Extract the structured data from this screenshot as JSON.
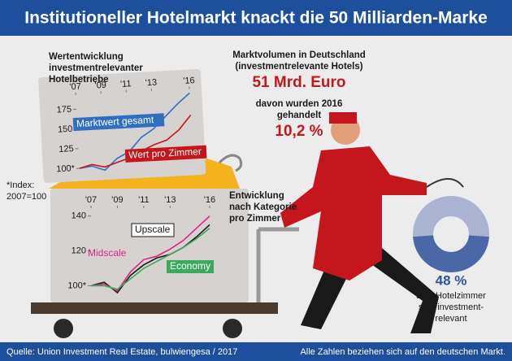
{
  "title": "Institutioneller Hotelmarkt knackt die 50 Milliarden-Marke",
  "chart_data": [
    {
      "type": "line",
      "title": [
        "Wertentwicklung",
        "investmentrelevanter",
        "Hotelbetriebe"
      ],
      "x": [
        2007,
        2008,
        2009,
        2010,
        2011,
        2012,
        2013,
        2014,
        2015,
        2016
      ],
      "xlim": [
        2007,
        2016
      ],
      "xticks": [
        {
          "value": 2007,
          "label": "'07"
        },
        {
          "value": 2009,
          "label": "'09"
        },
        {
          "value": 2011,
          "label": "'11"
        },
        {
          "value": 2013,
          "label": "'13"
        },
        {
          "value": 2016,
          "label": "'16"
        }
      ],
      "ylim": [
        92,
        195
      ],
      "yticks": [
        {
          "value": 100,
          "label": "100*"
        },
        125,
        150,
        175
      ],
      "series": [
        {
          "name": "Marktwert gesamt",
          "color": "#2f6fc0",
          "values": [
            100,
            102,
            96,
            110,
            118,
            135,
            145,
            160,
            175,
            188
          ]
        },
        {
          "name": "Wert pro Zimmer",
          "color": "#c4161c",
          "values": [
            100,
            104,
            100,
            105,
            110,
            118,
            125,
            130,
            142,
            160
          ]
        }
      ]
    },
    {
      "type": "line",
      "title": [
        "Entwicklung",
        "nach Kategorie",
        "pro Zimmer"
      ],
      "x": [
        2007,
        2008,
        2009,
        2010,
        2011,
        2012,
        2013,
        2014,
        2015,
        2016
      ],
      "xlim": [
        2007,
        2016
      ],
      "xticks": [
        {
          "value": 2007,
          "label": "'07"
        },
        {
          "value": 2009,
          "label": "'09"
        },
        {
          "value": 2011,
          "label": "'11"
        },
        {
          "value": 2013,
          "label": "'13"
        },
        {
          "value": 2016,
          "label": "'16"
        }
      ],
      "ylim": [
        96,
        145
      ],
      "yticks": [
        {
          "value": 100,
          "label": "100*"
        },
        120,
        140
      ],
      "series": [
        {
          "name": "Upscale",
          "color": "#1a1a1a",
          "values": [
            100,
            102,
            96,
            106,
            112,
            116,
            118,
            122,
            128,
            135
          ]
        },
        {
          "name": "Midscale",
          "color": "#e0218a",
          "values": [
            100,
            101,
            97,
            108,
            115,
            117,
            121,
            126,
            133,
            140
          ]
        },
        {
          "name": "Economy",
          "color": "#3aaa5c",
          "values": [
            100,
            100,
            98,
            104,
            110,
            114,
            118,
            122,
            127,
            133
          ]
        }
      ]
    },
    {
      "type": "pie",
      "categories": [
        null,
        null
      ],
      "values": [
        48,
        52
      ],
      "value_labels": [
        "48 %",
        null
      ],
      "colors": [
        "#4a67a6",
        "#aab3d2"
      ],
      "caption": [
        "aller Hotelzimmer",
        "sind investment-",
        "relevant"
      ]
    }
  ],
  "footnote": [
    "*Index:",
    "2007=100"
  ],
  "stats": {
    "volume_label": [
      "Marktvolumen in Deutschland",
      "(investmentrelevante Hotels)"
    ],
    "volume": "51 Mrd. Euro",
    "traded_label": [
      "davon wurden 2016",
      "gehandelt"
    ],
    "traded": "10,2 %"
  },
  "footer": {
    "source": "Quelle: Union Investment Real Estate, bulwiengesa / 2017",
    "note": "Alle Zahlen beziehen sich auf den deutschen Markt."
  }
}
